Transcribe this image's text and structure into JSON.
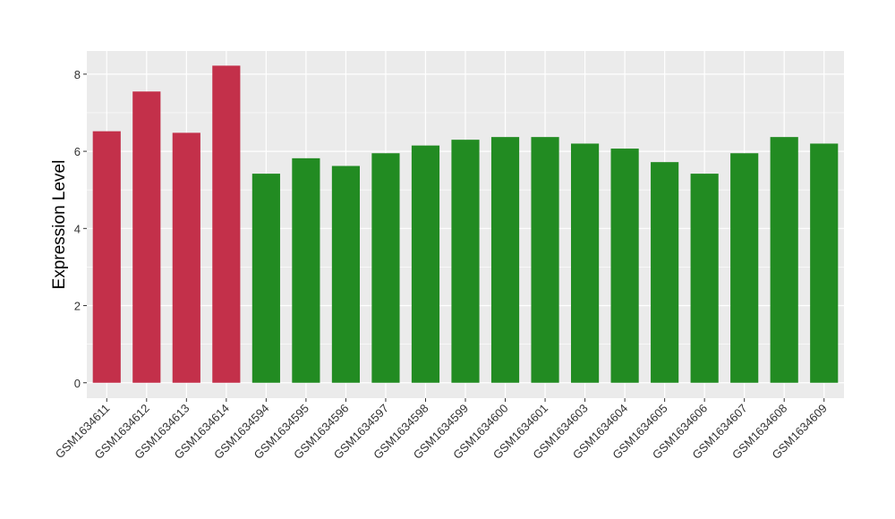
{
  "chart_data": {
    "type": "bar",
    "ylabel": "Expression Level",
    "xlabel": "",
    "ylim": [
      -0.4,
      8.6
    ],
    "yticks": [
      0,
      2,
      4,
      6,
      8
    ],
    "grid": true,
    "legend": "none",
    "colors": {
      "group1": "#C3304A",
      "group2": "#228B22",
      "panel": "#EBEBEB",
      "grid": "#FFFFFF"
    },
    "categories": [
      "GSM1634611",
      "GSM1634612",
      "GSM1634613",
      "GSM1634614",
      "GSM1634594",
      "GSM1634595",
      "GSM1634596",
      "GSM1634597",
      "GSM1634598",
      "GSM1634599",
      "GSM1634600",
      "GSM1634601",
      "GSM1634603",
      "GSM1634604",
      "GSM1634605",
      "GSM1634606",
      "GSM1634607",
      "GSM1634608",
      "GSM1634609"
    ],
    "values": [
      6.52,
      7.55,
      6.48,
      8.22,
      5.42,
      5.82,
      5.62,
      5.95,
      6.15,
      6.3,
      6.37,
      6.37,
      6.2,
      6.07,
      5.72,
      5.42,
      5.95,
      6.37,
      6.2
    ],
    "groups": [
      "group1",
      "group1",
      "group1",
      "group1",
      "group2",
      "group2",
      "group2",
      "group2",
      "group2",
      "group2",
      "group2",
      "group2",
      "group2",
      "group2",
      "group2",
      "group2",
      "group2",
      "group2",
      "group2"
    ]
  }
}
